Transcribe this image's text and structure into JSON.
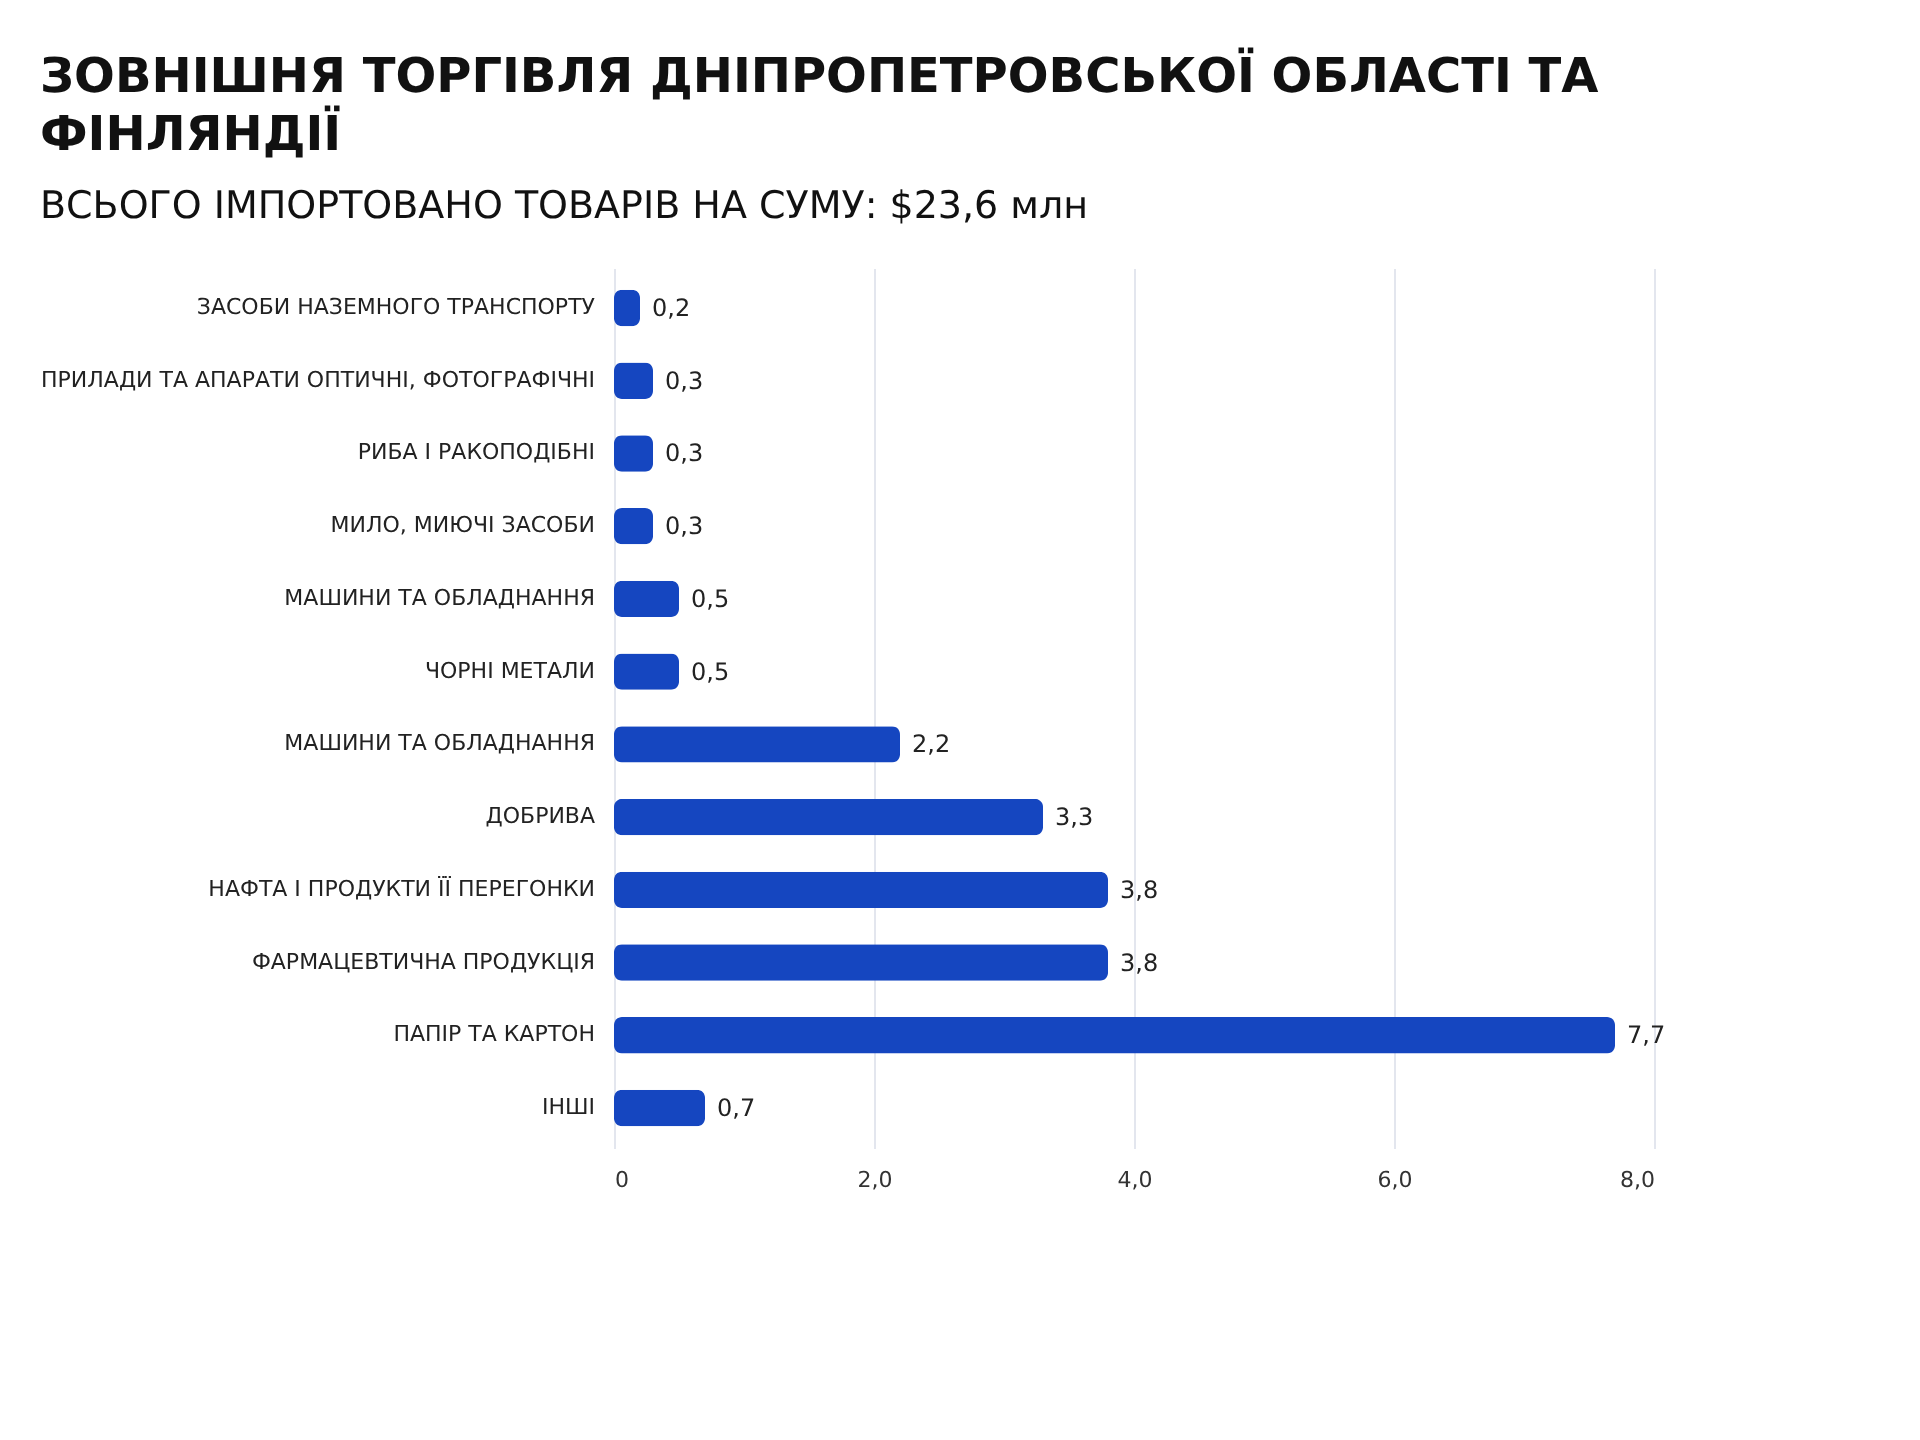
{
  "chart_data": {
    "type": "bar",
    "orientation": "horizontal",
    "title": "ЗОВНІШНЯ ТОРГІВЛЯ ДНІПРОПЕТРОВСЬКОЇ ОБЛАСТІ ТА ФІНЛЯНДІЇ",
    "subtitle": "ВСЬОГО ІМПОРТОВАНО ТОВАРІВ НА СУМУ: $23,6 млн",
    "categories": [
      "ЗАСОБИ НАЗЕМНОГО ТРАНСПОРТУ",
      "ПРИЛАДИ ТА АПАРАТИ ОПТИЧНІ, ФОТОГРАФІЧНІ",
      "РИБА І РАКОПОДІБНІ",
      "МИЛО, МИЮЧІ ЗАСОБИ",
      "МАШИНИ ТА ОБЛАДНАННЯ",
      "ЧОРНІ МЕТАЛИ",
      "МАШИНИ ТА ОБЛАДНАННЯ",
      "ДОБРИВА",
      "НАФТА І ПРОДУКТИ ЇЇ ПЕРЕГОНКИ",
      "ФАРМАЦЕВТИЧНА ПРОДУКЦІЯ",
      "ПАПІР ТА КАРТОН",
      "ІНШІ"
    ],
    "values": [
      0.2,
      0.3,
      0.3,
      0.3,
      0.5,
      0.5,
      2.2,
      3.3,
      3.8,
      3.8,
      7.7,
      0.7
    ],
    "value_labels": [
      "0,2",
      "0,3",
      "0,3",
      "0,3",
      "0,5",
      "0,5",
      "2,2",
      "3,3",
      "3,8",
      "3,8",
      "7,7",
      "0,7"
    ],
    "color": "#1546c0",
    "xlim": [
      0,
      8
    ],
    "xticks": [
      0,
      {
        "value": 2,
        "label": "2,0"
      },
      {
        "value": 4,
        "label": "4,0"
      },
      {
        "value": 6,
        "label": "6,0"
      },
      {
        "value": 8,
        "label": "8,0"
      }
    ],
    "grid": "x"
  }
}
